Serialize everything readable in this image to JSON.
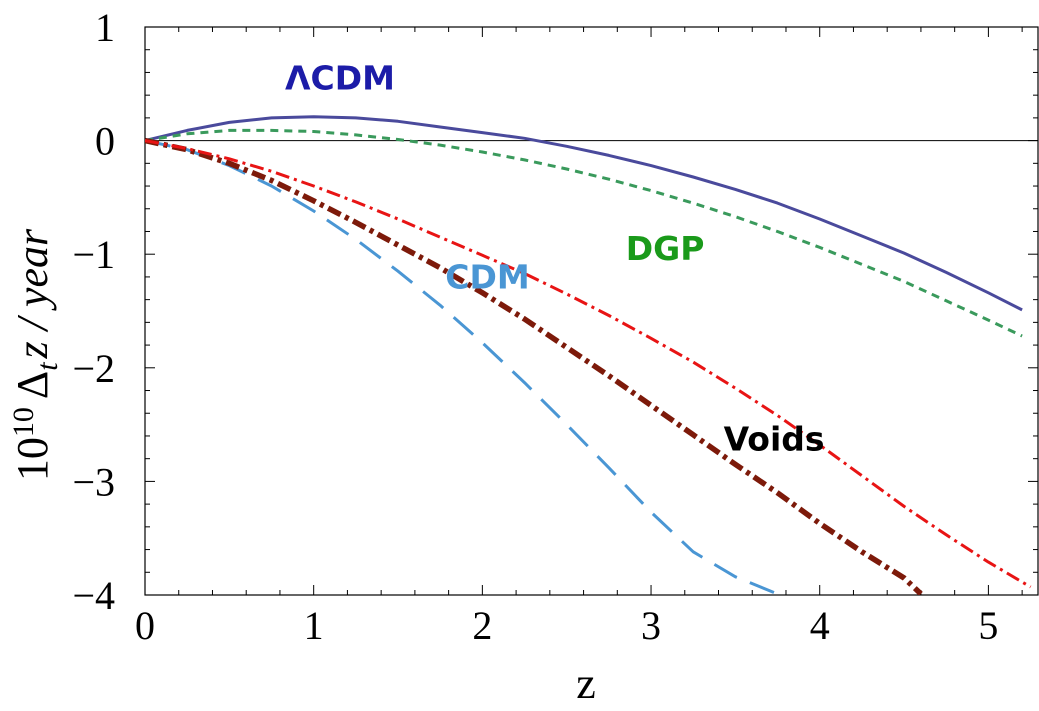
{
  "chart_data": {
    "type": "line",
    "title": "",
    "xlabel": "z",
    "ylabel": {
      "base": "10",
      "exponent": "10",
      "delta": "Δ",
      "sub": "t",
      "rest": "z / year"
    },
    "xlim": [
      0,
      5.3
    ],
    "ylim": [
      -4,
      1
    ],
    "xticks": [
      0,
      1,
      2,
      3,
      4,
      5
    ],
    "yticks": [
      1,
      0,
      -1,
      -2,
      -3,
      -4
    ],
    "xtick_labels": [
      "0",
      "1",
      "2",
      "3",
      "4",
      "5"
    ],
    "ytick_labels": [
      "1",
      "0",
      "−1",
      "−2",
      "−3",
      "−4"
    ],
    "zero_line": true,
    "series": [
      {
        "name": "ΛCDM",
        "color": "#4a4a9c",
        "label_color": "#1c1ca8",
        "style": "solid",
        "x": [
          0,
          0.25,
          0.5,
          0.75,
          1,
          1.25,
          1.5,
          1.75,
          2,
          2.25,
          2.5,
          2.75,
          3,
          3.25,
          3.5,
          3.75,
          4,
          4.25,
          4.5,
          4.75,
          5,
          5.2
        ],
        "y": [
          0,
          0.09,
          0.16,
          0.2,
          0.21,
          0.2,
          0.17,
          0.12,
          0.07,
          0.02,
          -0.05,
          -0.13,
          -0.22,
          -0.32,
          -0.43,
          -0.55,
          -0.69,
          -0.84,
          -0.99,
          -1.16,
          -1.34,
          -1.49
        ]
      },
      {
        "name": "DGP",
        "color": "#3a9a5c",
        "label_color": "#1a9a1a",
        "style": "dashed",
        "x": [
          0,
          0.25,
          0.5,
          0.75,
          1,
          1.25,
          1.5,
          1.75,
          2,
          2.25,
          2.5,
          2.75,
          3,
          3.25,
          3.5,
          3.75,
          4,
          4.25,
          4.5,
          4.75,
          5,
          5.2
        ],
        "y": [
          0,
          0.06,
          0.09,
          0.09,
          0.08,
          0.05,
          0.01,
          -0.04,
          -0.1,
          -0.17,
          -0.25,
          -0.34,
          -0.44,
          -0.55,
          -0.67,
          -0.8,
          -0.94,
          -1.09,
          -1.24,
          -1.41,
          -1.58,
          -1.72
        ]
      },
      {
        "name": "CDM",
        "color": "#4a96d4",
        "label_color": "#4a96d4",
        "style": "longdash",
        "x": [
          0,
          0.25,
          0.5,
          0.75,
          1,
          1.25,
          1.5,
          1.75,
          2,
          2.25,
          2.5,
          2.75,
          3,
          3.25,
          3.5,
          3.75
        ],
        "y": [
          0,
          -0.08,
          -0.22,
          -0.4,
          -0.62,
          -0.87,
          -1.15,
          -1.45,
          -1.78,
          -2.13,
          -2.5,
          -2.88,
          -3.27,
          -3.62,
          -3.84,
          -3.99
        ]
      },
      {
        "name": "Voids",
        "color": "#7d1a0a",
        "label_color": "#000000",
        "style": "dashdot-thick",
        "x": [
          0,
          0.25,
          0.5,
          0.75,
          1,
          1.25,
          1.5,
          1.75,
          2,
          2.25,
          2.5,
          2.75,
          3,
          3.25,
          3.5,
          3.75,
          4,
          4.25,
          4.5,
          4.6
        ],
        "y": [
          0,
          -0.08,
          -0.2,
          -0.35,
          -0.53,
          -0.72,
          -0.92,
          -1.12,
          -1.34,
          -1.57,
          -1.82,
          -2.07,
          -2.33,
          -2.59,
          -2.85,
          -3.1,
          -3.37,
          -3.62,
          -3.85,
          -3.99
        ]
      },
      {
        "name": "",
        "color": "#e81414",
        "label_color": "#e81414",
        "style": "dashdot",
        "x": [
          0,
          0.25,
          0.5,
          0.75,
          1,
          1.25,
          1.5,
          1.75,
          2,
          2.25,
          2.5,
          2.75,
          3,
          3.25,
          3.5,
          3.75,
          4,
          4.25,
          4.5,
          4.75,
          5,
          5.25
        ],
        "y": [
          0,
          -0.07,
          -0.16,
          -0.27,
          -0.4,
          -0.54,
          -0.69,
          -0.85,
          -1.01,
          -1.17,
          -1.35,
          -1.54,
          -1.74,
          -1.95,
          -2.18,
          -2.42,
          -2.68,
          -2.95,
          -3.22,
          -3.47,
          -3.71,
          -3.93
        ]
      }
    ],
    "annotations": [
      {
        "id": "lcdm",
        "text": "ΛCDM",
        "x": 0.83,
        "y": 0.45,
        "color": "#1c1ca8"
      },
      {
        "id": "dgp",
        "text": "DGP",
        "x": 2.85,
        "y": -1.05,
        "color": "#1a9a1a"
      },
      {
        "id": "cdm",
        "text": "CDM",
        "x": 1.78,
        "y": -1.3,
        "color": "#4a96d4"
      },
      {
        "id": "voids",
        "text": "Voids",
        "x": 3.43,
        "y": -2.73,
        "color": "#000000"
      }
    ]
  }
}
